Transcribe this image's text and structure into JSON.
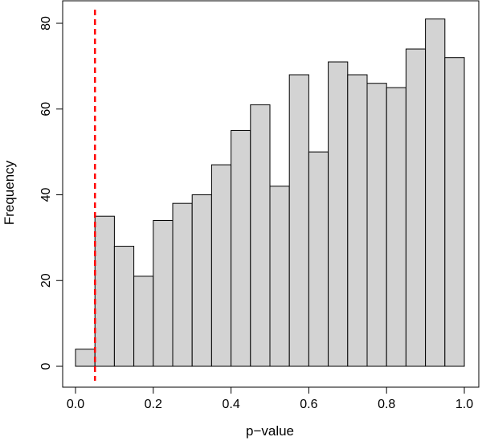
{
  "chart_data": {
    "type": "bar",
    "title": "",
    "xlabel": "p−value",
    "ylabel": "Frequency",
    "bin_width": 0.05,
    "bin_starts": [
      0.0,
      0.05,
      0.1,
      0.15,
      0.2,
      0.25,
      0.3,
      0.35,
      0.4,
      0.45,
      0.5,
      0.55,
      0.6,
      0.65,
      0.7,
      0.75,
      0.8,
      0.85,
      0.9,
      0.95
    ],
    "values": [
      4,
      35,
      28,
      21,
      34,
      38,
      40,
      47,
      55,
      61,
      42,
      68,
      50,
      71,
      68,
      66,
      65,
      74,
      81,
      72
    ],
    "xlim": [
      0,
      1
    ],
    "ylim": [
      0,
      80
    ],
    "x_ticks": [
      "0.0",
      "0.2",
      "0.4",
      "0.6",
      "0.8",
      "1.0"
    ],
    "x_tick_values": [
      0,
      0.2,
      0.4,
      0.6,
      0.8,
      1.0
    ],
    "y_ticks": [
      "0",
      "20",
      "40",
      "60",
      "80"
    ],
    "y_tick_values": [
      0,
      20,
      40,
      60,
      80
    ],
    "threshold_line": {
      "x": 0.05,
      "style": "dashed"
    },
    "bar_fill": "#d3d3d3",
    "bar_stroke": "#000000",
    "threshold_color": "#ff0000",
    "grid": false,
    "legend": "none"
  }
}
